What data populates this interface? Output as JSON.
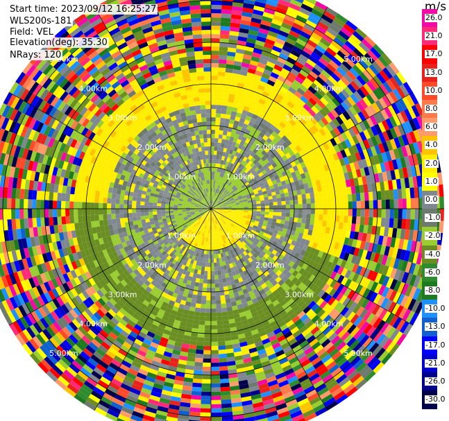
{
  "info": {
    "start_time": "Start time: 2023/09/12 16:25:27",
    "instrument": "WLS200s-181",
    "field": "Field: VEL",
    "elevation": "Elevation(deg): 35.30",
    "nrays": "NRays: 120"
  },
  "colorbar": {
    "unit": "m/s",
    "ticks": [
      "26.0",
      "21.0",
      "17.0",
      "13.0",
      "10.0",
      "8.0",
      "6.0",
      "4.0",
      "2.0",
      "1.0",
      "0.0",
      "-1.0",
      "-2.0",
      "-4.0",
      "-6.0",
      "-8.0",
      "-10.0",
      "-13.0",
      "-17.0",
      "-21.0",
      "-26.0",
      "-30.0"
    ],
    "colors": [
      "#f20aa6",
      "#ff2a7a",
      "#ff0000",
      "#e8231c",
      "#ff4a2a",
      "#ff7a4a",
      "#ff9a6a",
      "#ffc400",
      "#ffee00",
      "#ffff00",
      "#7f8790",
      "#6d7a6d",
      "#9acd32",
      "#6b8e23",
      "#2e8b2e",
      "#1e7a1e",
      "#1e90ff",
      "#1060d0",
      "#0000ff",
      "#0000cd",
      "#000088",
      "#00004a"
    ]
  },
  "chart_data": {
    "type": "ppi",
    "field": "VEL",
    "nrays": 120,
    "range_rings_km": [
      "1.00km",
      "2.00km",
      "3.00km",
      "4.00km",
      "5.00km"
    ],
    "range_values_km": [
      1,
      2,
      3,
      4,
      5
    ],
    "max_range_km": 5.6,
    "radial_lines": 12,
    "vmin": -30,
    "vmax": 26
  }
}
